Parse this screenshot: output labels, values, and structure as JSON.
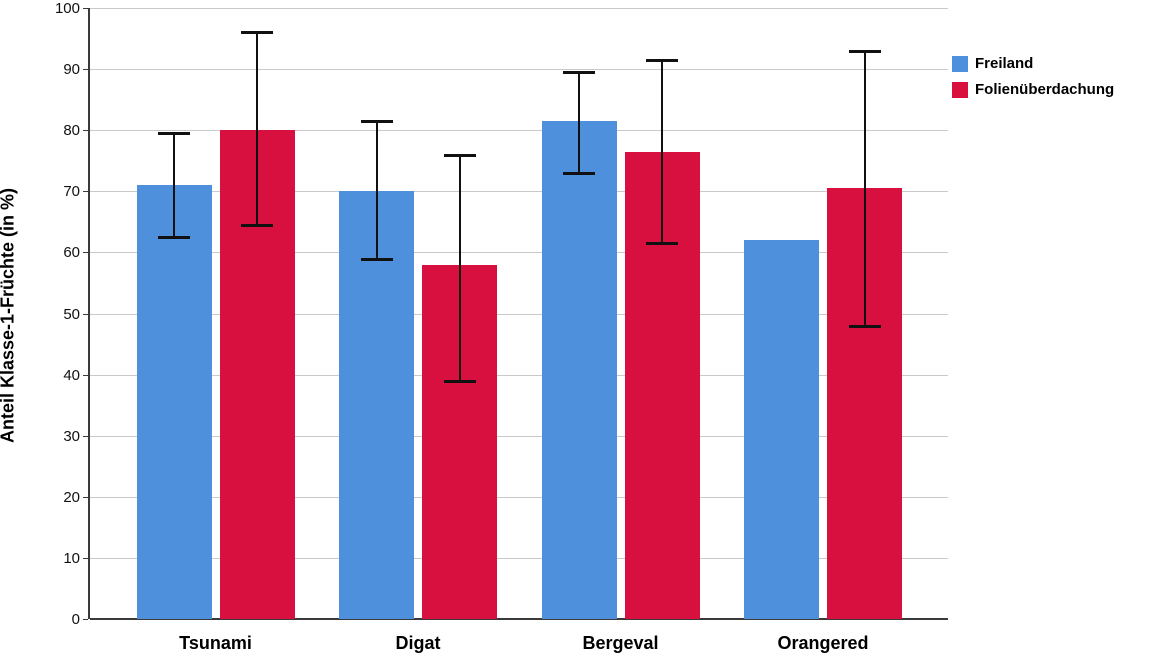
{
  "chart_data": {
    "type": "bar",
    "title": "",
    "xlabel": "",
    "ylabel": "Anteil Klasse-1-Früchte (in %)",
    "ylim": [
      0,
      100
    ],
    "ytick_step": 10,
    "grid": true,
    "legend_position": "top-right",
    "categories": [
      "Tsunami",
      "Digat",
      "Bergeval",
      "Orangered"
    ],
    "series": [
      {
        "name": "Freiland",
        "color": "#4E90DC",
        "values": [
          71,
          70,
          81.5,
          62
        ],
        "error_low": [
          62.5,
          59,
          73,
          null
        ],
        "error_high": [
          79.5,
          81.5,
          89.5,
          null
        ]
      },
      {
        "name": "Folienüberdachung",
        "color": "#D8103F",
        "values": [
          80,
          58,
          76.5,
          70.5
        ],
        "error_low": [
          64.5,
          39,
          61.5,
          48
        ],
        "error_high": [
          96,
          76,
          91.5,
          93
        ]
      }
    ]
  },
  "colors": {
    "background": "#ffffff",
    "gridline": "#c9c9c9",
    "axis": "#3a3a3a",
    "error_bar": "#111111",
    "text": "#000000"
  }
}
